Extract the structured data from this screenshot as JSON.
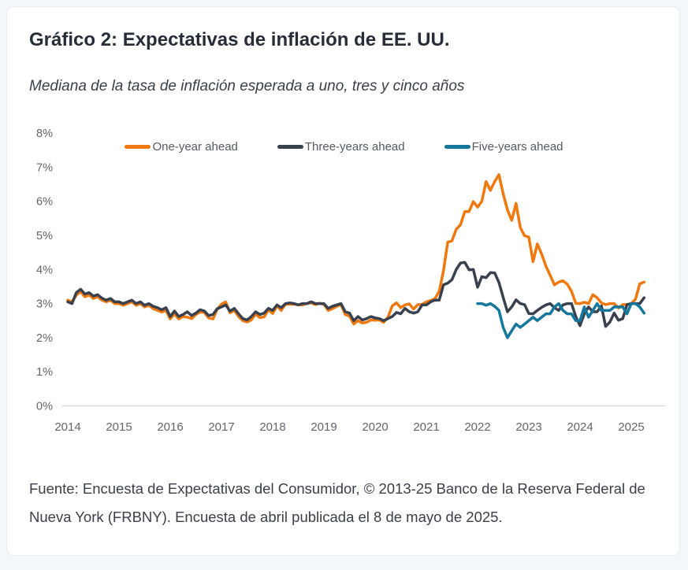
{
  "card": {
    "title": "Gráfico 2: Expectativas de inflación de EE. UU.",
    "subtitle": "Mediana de la tasa de inflación esperada a uno, tres y cinco años",
    "footer_line1": "Fuente: Encuesta de Expectativas del Consumidor, © 2013-25 Banco de la Reserva Federal de",
    "footer_line2": "Nueva York (FRBNY). Encuesta de abril publicada el 8 de mayo de 2025."
  },
  "colors": {
    "one_year": "#F0790F",
    "three_year": "#3A414E",
    "five_year": "#15779B",
    "axis_text": "#62666C",
    "axis_line": "#D9DEE4",
    "title_text": "#272D38"
  },
  "chart_data": {
    "type": "line",
    "title": "Gráfico 2: Expectativas de inflación de EE. UU.",
    "subtitle": "Mediana de la tasa de inflación esperada a uno, tres y cinco años",
    "x_unit": "monthly",
    "x_start": "2014-01",
    "x_end": "2025-04",
    "xlim_years": [
      2014,
      2025.33
    ],
    "ylim": [
      0,
      8
    ],
    "grid": false,
    "legend_position": "top-center",
    "y_tick_labels": [
      "0%",
      "1%",
      "2%",
      "3%",
      "4%",
      "5%",
      "6%",
      "7%",
      "8%"
    ],
    "x_tick_labels": [
      "2014",
      "2015",
      "2016",
      "2017",
      "2018",
      "2019",
      "2020",
      "2021",
      "2022",
      "2023",
      "2024",
      "2025"
    ],
    "series": [
      {
        "name": "One-year ahead",
        "color": "#F0790F",
        "start": "2014-01",
        "values": [
          3.1,
          3.05,
          3.25,
          3.35,
          3.2,
          3.25,
          3.15,
          3.2,
          3.1,
          3.05,
          3.1,
          3.0,
          3.0,
          2.95,
          3.0,
          3.05,
          2.95,
          3.0,
          2.9,
          2.95,
          2.85,
          2.8,
          2.75,
          2.8,
          2.55,
          2.7,
          2.55,
          2.62,
          2.6,
          2.56,
          2.68,
          2.75,
          2.74,
          2.58,
          2.55,
          2.83,
          2.98,
          3.05,
          2.73,
          2.8,
          2.62,
          2.5,
          2.46,
          2.52,
          2.69,
          2.59,
          2.61,
          2.82,
          2.71,
          2.93,
          2.8,
          2.98,
          2.98,
          2.98,
          2.97,
          2.96,
          3.0,
          3.02,
          2.97,
          3.01,
          2.98,
          2.8,
          2.85,
          2.92,
          2.97,
          2.68,
          2.63,
          2.4,
          2.5,
          2.43,
          2.45,
          2.52,
          2.51,
          2.52,
          2.45,
          2.6,
          2.93,
          3.02,
          2.88,
          2.96,
          2.99,
          2.84,
          2.97,
          2.97,
          3.05,
          3.09,
          3.14,
          3.36,
          3.96,
          4.8,
          4.84,
          5.18,
          5.31,
          5.7,
          5.7,
          5.99,
          5.83,
          6.0,
          6.58,
          6.32,
          6.58,
          6.78,
          6.22,
          5.75,
          5.44,
          5.94,
          5.23,
          4.99,
          4.95,
          4.23,
          4.75,
          4.45,
          4.1,
          3.83,
          3.55,
          3.63,
          3.67,
          3.57,
          3.36,
          3.01,
          3.0,
          3.04,
          3.0,
          3.26,
          3.17,
          3.02,
          2.97,
          3.0,
          3.0,
          2.87,
          2.97,
          2.97,
          3.0,
          3.13,
          3.58,
          3.63
        ]
      },
      {
        "name": "Three-years ahead",
        "color": "#3A414E",
        "start": "2014-01",
        "values": [
          3.05,
          3.0,
          3.32,
          3.42,
          3.28,
          3.32,
          3.22,
          3.26,
          3.16,
          3.1,
          3.15,
          3.05,
          3.05,
          3.0,
          3.05,
          3.1,
          3.0,
          3.05,
          2.95,
          3.0,
          2.92,
          2.88,
          2.82,
          2.88,
          2.62,
          2.78,
          2.62,
          2.68,
          2.76,
          2.65,
          2.72,
          2.82,
          2.78,
          2.65,
          2.68,
          2.85,
          2.9,
          2.96,
          2.78,
          2.86,
          2.7,
          2.56,
          2.52,
          2.62,
          2.76,
          2.68,
          2.72,
          2.86,
          2.8,
          2.96,
          2.88,
          3.0,
          3.02,
          3.0,
          2.96,
          3.0,
          3.0,
          3.05,
          3.0,
          3.0,
          3.0,
          2.86,
          2.92,
          2.96,
          3.0,
          2.76,
          2.72,
          2.5,
          2.62,
          2.52,
          2.56,
          2.62,
          2.58,
          2.56,
          2.5,
          2.56,
          2.62,
          2.74,
          2.7,
          2.86,
          2.76,
          2.72,
          2.76,
          2.96,
          2.96,
          3.05,
          3.1,
          3.1,
          3.55,
          3.6,
          3.7,
          4.0,
          4.19,
          4.21,
          3.99,
          4.0,
          3.48,
          3.79,
          3.76,
          3.91,
          3.9,
          3.62,
          3.18,
          2.76,
          2.9,
          3.11,
          3.0,
          2.97,
          2.71,
          2.7,
          2.8,
          2.89,
          2.96,
          3.0,
          2.88,
          2.8,
          2.96,
          3.0,
          3.0,
          2.62,
          2.35,
          2.7,
          2.9,
          2.76,
          2.76,
          2.93,
          2.33,
          2.46,
          2.72,
          2.51,
          2.56,
          2.97,
          3.0,
          3.0,
          3.0,
          3.17
        ]
      },
      {
        "name": "Five-years ahead",
        "color": "#15779B",
        "start": "2022-01",
        "values": [
          3.0,
          3.0,
          2.95,
          3.0,
          2.92,
          2.8,
          2.3,
          2.0,
          2.2,
          2.4,
          2.3,
          2.4,
          2.5,
          2.6,
          2.5,
          2.6,
          2.7,
          2.7,
          2.9,
          3.0,
          2.8,
          2.7,
          2.7,
          2.5,
          2.5,
          2.9,
          2.6,
          2.8,
          3.0,
          2.8,
          2.8,
          2.8,
          2.9,
          2.9,
          2.9,
          2.7,
          3.0,
          3.0,
          2.9,
          2.72
        ]
      }
    ]
  }
}
